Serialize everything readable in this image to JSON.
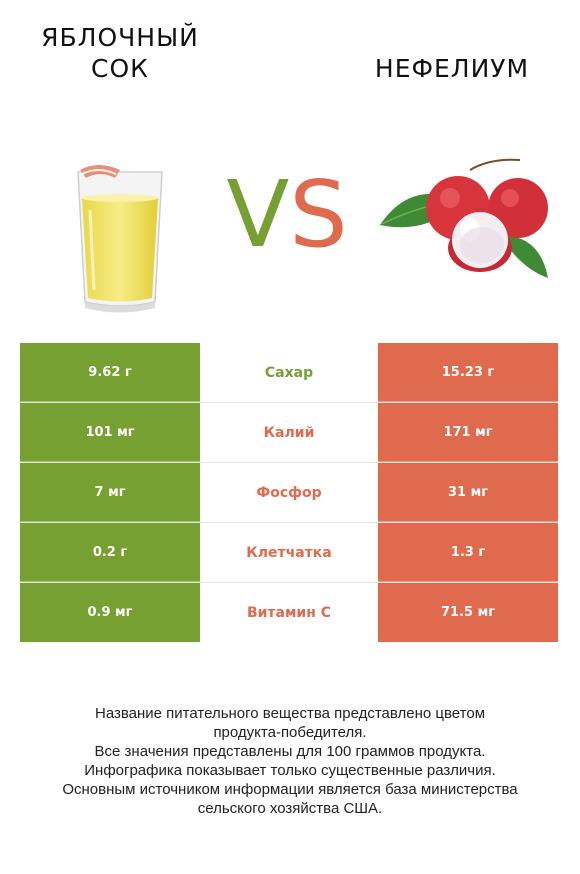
{
  "left_product": {
    "title_line1": "ЯБЛОЧНЫЙ",
    "title_line2": "СОК"
  },
  "right_product": {
    "title": "НЕФЕЛИУМ"
  },
  "vs": {
    "v": "V",
    "s": "S"
  },
  "colors": {
    "left": "#76a032",
    "right": "#e06a4e"
  },
  "rows": [
    {
      "left": "9.62 г",
      "nutrient": "Сахар",
      "right": "15.23 г",
      "winner": "left"
    },
    {
      "left": "101 мг",
      "nutrient": "Калий",
      "right": "171 мг",
      "winner": "right"
    },
    {
      "left": "7 мг",
      "nutrient": "Фосфор",
      "right": "31 мг",
      "winner": "right"
    },
    {
      "left": "0.2 г",
      "nutrient": "Клетчатка",
      "right": "1.3 г",
      "winner": "right"
    },
    {
      "left": "0.9 мг",
      "nutrient": "Витамин C",
      "right": "71.5 мг",
      "winner": "right"
    }
  ],
  "footer": {
    "line1": "Название питательного вещества представлено цветом",
    "line2": "продукта-победителя.",
    "line3": "Все значения представлены для 100 граммов продукта.",
    "line4": "Инфографика показывает только существенные различия.",
    "line5": "Основным источником информации является база министерства",
    "line6": "сельского хозяйства США."
  }
}
